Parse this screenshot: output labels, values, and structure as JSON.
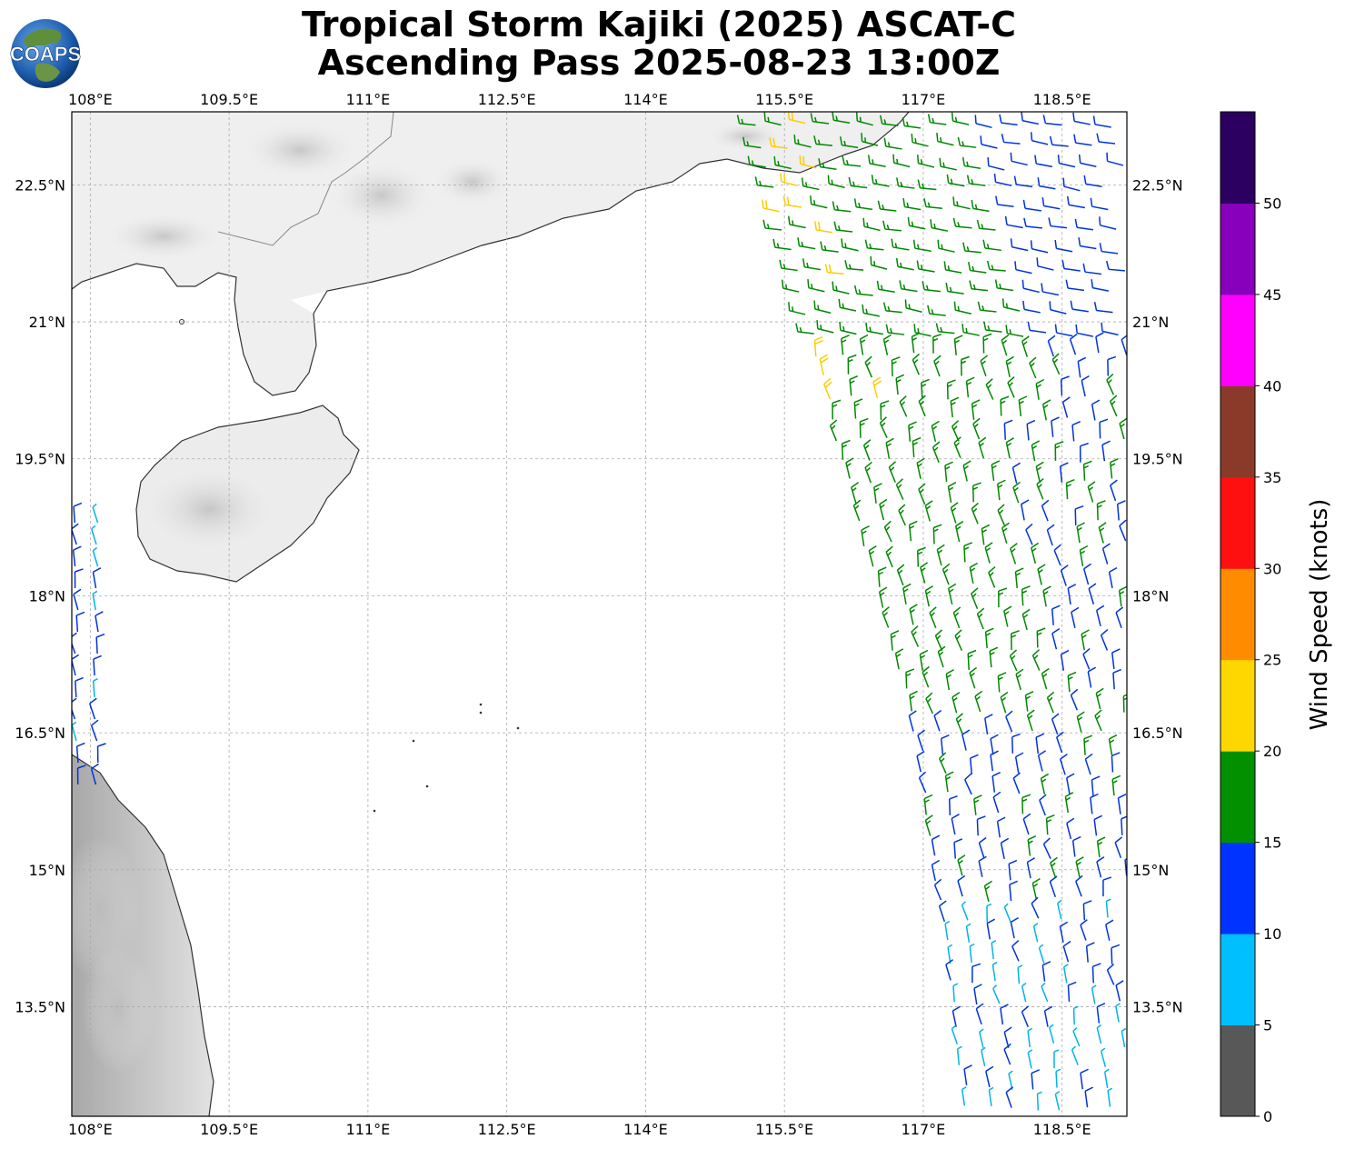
{
  "title": {
    "line1": "Tropical Storm Kajiki (2025) ASCAT-C",
    "line2": "Ascending Pass 2025-08-23 13:00Z"
  },
  "logo": {
    "text": "COAPS",
    "icon": "globe-icon"
  },
  "map": {
    "lon_range": [
      107.8,
      119.2
    ],
    "lat_range": [
      12.3,
      23.3
    ],
    "lon_labels": [
      "108°E",
      "109.5°E",
      "111°E",
      "112.5°E",
      "114°E",
      "115.5°E",
      "117°E",
      "118.5°E"
    ],
    "lon_values": [
      108,
      109.5,
      111,
      112.5,
      114,
      115.5,
      117,
      118.5
    ],
    "lat_labels": [
      "13.5°N",
      "15°N",
      "16.5°N",
      "18°N",
      "19.5°N",
      "21°N",
      "22.5°N"
    ],
    "lat_values": [
      13.5,
      15,
      16.5,
      18,
      19.5,
      21,
      22.5
    ],
    "gridlines": true,
    "background": "grayscale infrared clouds over land"
  },
  "colorbar": {
    "label": "Wind Speed (knots)",
    "ticks": [
      "0",
      "5",
      "10",
      "15",
      "20",
      "25",
      "30",
      "35",
      "40",
      "45",
      "50"
    ],
    "colors": [
      "#585858",
      "#00bfff",
      "#0033ff",
      "#009000",
      "#ffd700",
      "#ff8c00",
      "#ff1010",
      "#8b3a2a",
      "#ff00ff",
      "#8800bb",
      "#2b0060"
    ]
  },
  "wind_colors": {
    "5-10": "#00b4e6",
    "10-15": "#0033dd",
    "15-20": "#008800",
    "20-25": "#ffcc00"
  }
}
